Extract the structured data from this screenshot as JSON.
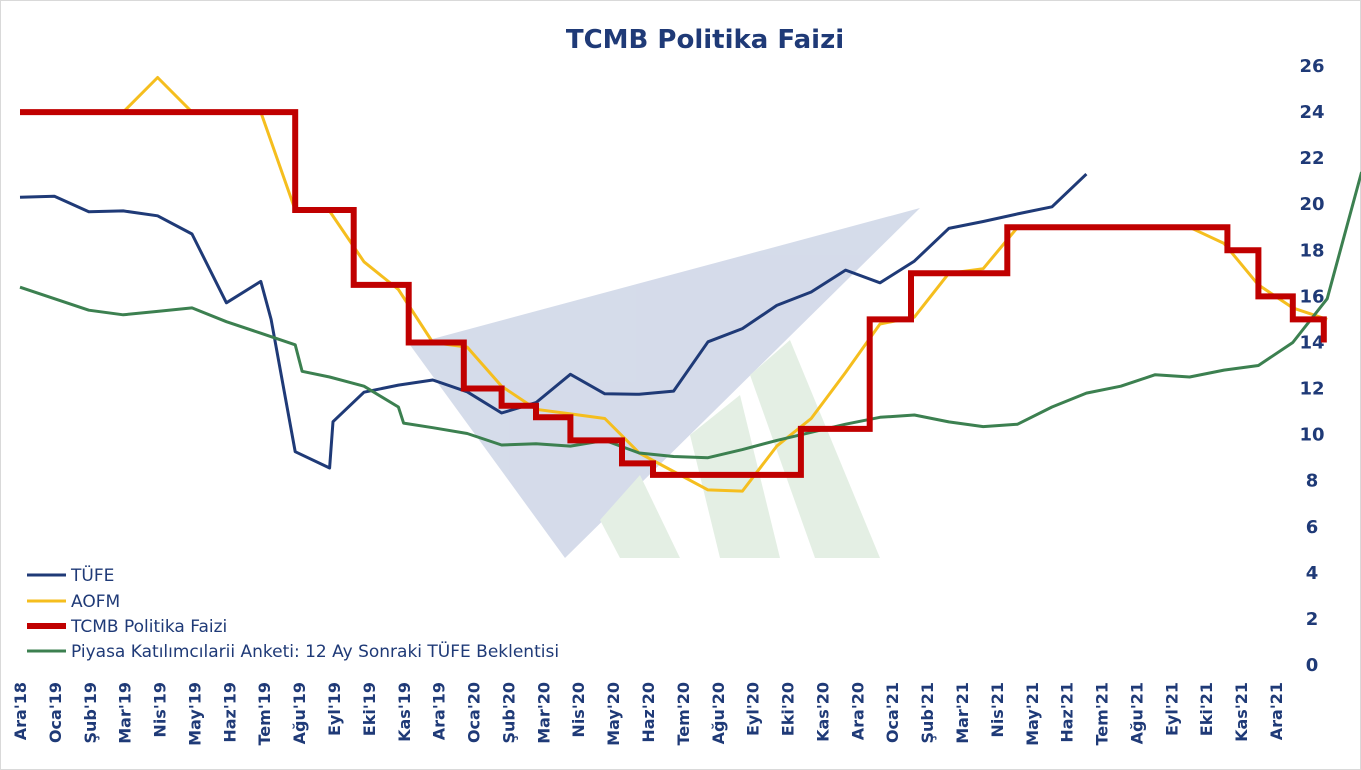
{
  "chart_data": {
    "type": "line",
    "title": "TCMB Politika Faizi",
    "ylim": [
      0,
      26
    ],
    "yticks": [
      0,
      2,
      4,
      6,
      8,
      10,
      12,
      14,
      16,
      18,
      20,
      22,
      24,
      26
    ],
    "y_axis_side": "right",
    "grid": false,
    "legend_position": "bottom-left",
    "categories": [
      "Ara'18",
      "Oca'19",
      "Şub'19",
      "Mar'19",
      "Nis'19",
      "May'19",
      "Haz'19",
      "Tem'19",
      "Ağu'19",
      "Eyl'19",
      "Eki'19",
      "Kas'19",
      "Ara'19",
      "Oca'20",
      "Şub'20",
      "Mar'20",
      "Nis'20",
      "May'20",
      "Haz'20",
      "Tem'20",
      "Ağu'20",
      "Eyl'20",
      "Eki'20",
      "Kas'20",
      "Ara'20",
      "Oca'21",
      "Şub'21",
      "Mar'21",
      "Nis'21",
      "May'21",
      "Haz'21",
      "Tem'21",
      "Ağu'21",
      "Eyl'21",
      "Eki'21",
      "Kas'21",
      "Ara'21"
    ],
    "series": [
      {
        "name": "TÜFE",
        "color": "#1f3a77",
        "points": [
          [
            0,
            20.3
          ],
          [
            1,
            20.35
          ],
          [
            2,
            19.67
          ],
          [
            3,
            19.71
          ],
          [
            4,
            19.5
          ],
          [
            5,
            18.71
          ],
          [
            6,
            15.72
          ],
          [
            7,
            16.65
          ],
          [
            7.3,
            15.0
          ],
          [
            8,
            9.26
          ],
          [
            9,
            8.55
          ],
          [
            9.1,
            10.56
          ],
          [
            10,
            11.84
          ],
          [
            11,
            12.15
          ],
          [
            12,
            12.37
          ],
          [
            13,
            11.86
          ],
          [
            14,
            10.94
          ],
          [
            15,
            11.39
          ],
          [
            16,
            12.62
          ],
          [
            17,
            11.77
          ],
          [
            18,
            11.75
          ],
          [
            19,
            11.89
          ],
          [
            20,
            14.03
          ],
          [
            21,
            14.6
          ],
          [
            22,
            15.61
          ],
          [
            23,
            16.19
          ],
          [
            24,
            17.14
          ],
          [
            25,
            16.59
          ],
          [
            26,
            17.53
          ],
          [
            27,
            18.95
          ],
          [
            28,
            19.25
          ],
          [
            29,
            19.58
          ],
          [
            30,
            19.89
          ],
          [
            31,
            21.31
          ]
        ]
      },
      {
        "name": "AOFM",
        "color": "#f5be1e",
        "points": [
          [
            0,
            24
          ],
          [
            1,
            24
          ],
          [
            3,
            24
          ],
          [
            4,
            25.5
          ],
          [
            5,
            24
          ],
          [
            7,
            24
          ],
          [
            8,
            19.75
          ],
          [
            9,
            19.7
          ],
          [
            10,
            17.5
          ],
          [
            11,
            16.3
          ],
          [
            12,
            14
          ],
          [
            13,
            13.8
          ],
          [
            14,
            12.1
          ],
          [
            15,
            11.1
          ],
          [
            16,
            10.9
          ],
          [
            17,
            10.7
          ],
          [
            18,
            9.2
          ],
          [
            19,
            8.4
          ],
          [
            20,
            7.6
          ],
          [
            21,
            7.55
          ],
          [
            22,
            9.5
          ],
          [
            23,
            10.7
          ],
          [
            24,
            12.7
          ],
          [
            25,
            14.8
          ],
          [
            26,
            15.1
          ],
          [
            27,
            17.0
          ],
          [
            28,
            17.2
          ],
          [
            29,
            19.0
          ],
          [
            30,
            19.0
          ],
          [
            31,
            19.0
          ],
          [
            32,
            19.0
          ],
          [
            33,
            19.0
          ],
          [
            34,
            19.0
          ],
          [
            35,
            18.3
          ],
          [
            36,
            16.5
          ],
          [
            37,
            15.5
          ],
          [
            38,
            15.0
          ]
        ]
      },
      {
        "name": "TCMB Politika Faizi",
        "color": "#c00000",
        "points": [
          [
            0,
            24
          ],
          [
            8,
            24
          ],
          [
            8,
            19.75
          ],
          [
            9.7,
            19.75
          ],
          [
            9.7,
            16.5
          ],
          [
            11.3,
            16.5
          ],
          [
            11.3,
            14
          ],
          [
            12.9,
            14
          ],
          [
            12.9,
            12
          ],
          [
            14,
            12
          ],
          [
            14,
            11.25
          ],
          [
            15,
            11.25
          ],
          [
            15,
            10.75
          ],
          [
            16,
            10.75
          ],
          [
            16,
            9.75
          ],
          [
            17.5,
            9.75
          ],
          [
            17.5,
            8.75
          ],
          [
            18.4,
            8.75
          ],
          [
            18.4,
            8.25
          ],
          [
            22.7,
            8.25
          ],
          [
            22.7,
            10.25
          ],
          [
            24.7,
            10.25
          ],
          [
            24.7,
            15
          ],
          [
            25.9,
            15
          ],
          [
            25.9,
            17
          ],
          [
            28.7,
            17
          ],
          [
            28.7,
            19
          ],
          [
            35.1,
            19
          ],
          [
            35.1,
            18
          ],
          [
            36,
            18
          ],
          [
            36,
            16
          ],
          [
            37,
            16
          ],
          [
            37,
            15
          ],
          [
            37.9,
            15
          ],
          [
            37.9,
            14
          ]
        ]
      },
      {
        "name": "Piyasa Katılımcılarii Anketi: 12 Ay Sonraki TÜFE Beklentisi",
        "color": "#3c8050",
        "points": [
          [
            0,
            16.4
          ],
          [
            1,
            15.9
          ],
          [
            2,
            15.4
          ],
          [
            3,
            15.2
          ],
          [
            4,
            15.35
          ],
          [
            5,
            15.5
          ],
          [
            6,
            14.9
          ],
          [
            7,
            14.4
          ],
          [
            8,
            13.9
          ],
          [
            8.2,
            12.75
          ],
          [
            9,
            12.5
          ],
          [
            10,
            12.1
          ],
          [
            11,
            11.2
          ],
          [
            11.15,
            10.5
          ],
          [
            12,
            10.3
          ],
          [
            13,
            10.05
          ],
          [
            14,
            9.55
          ],
          [
            15,
            9.6
          ],
          [
            16,
            9.5
          ],
          [
            17,
            9.75
          ],
          [
            18,
            9.2
          ],
          [
            19,
            9.05
          ],
          [
            20,
            9.0
          ],
          [
            21,
            9.35
          ],
          [
            22,
            9.75
          ],
          [
            23,
            10.1
          ],
          [
            24,
            10.45
          ],
          [
            25,
            10.75
          ],
          [
            26,
            10.85
          ],
          [
            27,
            10.55
          ],
          [
            28,
            10.35
          ],
          [
            29,
            10.45
          ],
          [
            30,
            11.2
          ],
          [
            31,
            11.8
          ],
          [
            32,
            12.1
          ],
          [
            33,
            12.6
          ],
          [
            34,
            12.5
          ],
          [
            35,
            12.8
          ],
          [
            36,
            13.0
          ],
          [
            37,
            14.0
          ],
          [
            38,
            15.9
          ],
          [
            39,
            21.4
          ]
        ]
      }
    ]
  }
}
